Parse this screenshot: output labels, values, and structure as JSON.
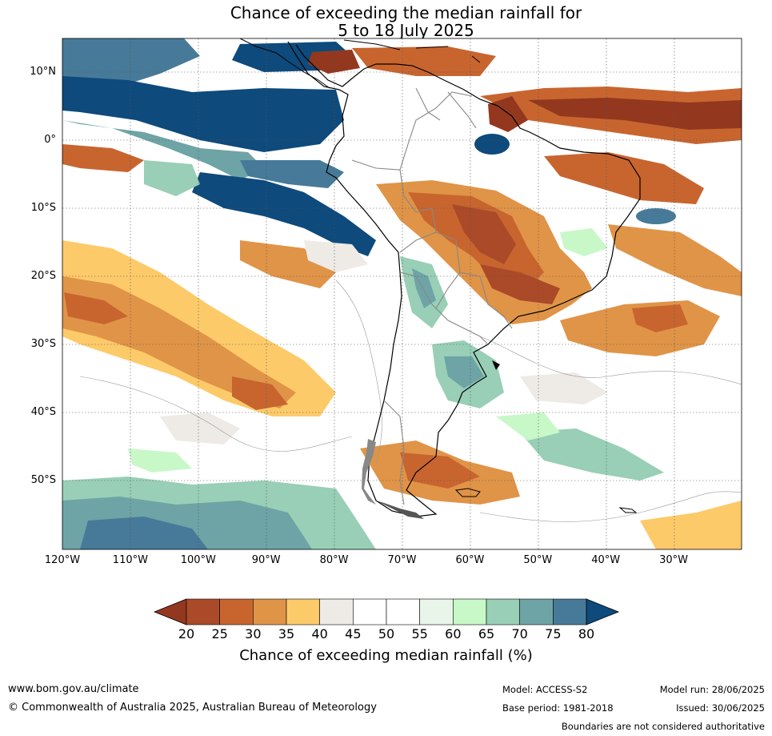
{
  "title": {
    "line1": "Chance of exceeding the median rainfall for",
    "line2": "5 to 18 July 2025"
  },
  "map": {
    "lat_labels": [
      "10°N",
      "0°",
      "10°S",
      "20°S",
      "30°S",
      "40°S",
      "50°S"
    ],
    "lat_values": [
      10,
      0,
      -10,
      -20,
      -30,
      -40,
      -50
    ],
    "lon_labels": [
      "120°W",
      "110°W",
      "100°W",
      "90°W",
      "80°W",
      "70°W",
      "60°W",
      "50°W",
      "40°W",
      "30°W"
    ],
    "lon_values": [
      -120,
      -110,
      -100,
      -90,
      -80,
      -70,
      -60,
      -50,
      -40,
      -30
    ],
    "extent": {
      "lon_min": -120,
      "lon_max": -20,
      "lat_min": -60,
      "lat_max": 15
    }
  },
  "colorbar": {
    "ticks": [
      "20",
      "25",
      "30",
      "35",
      "40",
      "45",
      "50",
      "55",
      "60",
      "65",
      "70",
      "75",
      "80"
    ],
    "colors": [
      "#ab4a28",
      "#c8652f",
      "#e09447",
      "#fdca6a",
      "#eeebe6",
      "#ffffff",
      "#ffffff",
      "#e8f5e8",
      "#c8f8c8",
      "#98cfb6",
      "#6ea4a6",
      "#477a99"
    ],
    "low_color": "#93381f",
    "high_color": "#0e4a7c",
    "label": "Chance of exceeding median rainfall (%)"
  },
  "footer": {
    "website": "www.bom.gov.au/climate",
    "copyright": "© Commonwealth of Australia 2025, Australian Bureau of Meteorology",
    "model": "Model: ACCESS-S2",
    "base_period": "Base period: 1981-2018",
    "model_run": "Model run: 28/06/2025",
    "issued": "Issued: 30/06/2025",
    "disclaimer": "Boundaries are not considered authoritative"
  }
}
